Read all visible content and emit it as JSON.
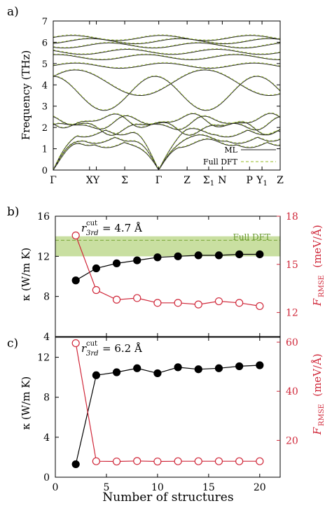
{
  "chart_data": [
    {
      "panel_label": "a)",
      "type": "line",
      "title": "",
      "xlabel": "",
      "ylabel": "Frequency (THz)",
      "ylim": [
        0,
        7
      ],
      "yticks": [
        0,
        1,
        2,
        3,
        4,
        5,
        6,
        7
      ],
      "x_path_labels": [
        "Γ",
        "X",
        "Y",
        "Σ",
        "Γ",
        "Z",
        "Σ1",
        "N",
        "P",
        "Y1",
        "Z"
      ],
      "x_path_positions": [
        0,
        0.16,
        0.19,
        0.315,
        0.465,
        0.59,
        0.685,
        0.745,
        0.865,
        0.92,
        1.0
      ],
      "legend": {
        "placement": "bottom-right",
        "entries": [
          "ML",
          "Full DFT"
        ]
      },
      "series": [
        {
          "name": "ML",
          "style": "solid",
          "color": "#222222"
        },
        {
          "name": "Full DFT",
          "style": "dashed",
          "color": "#a8c84a"
        }
      ],
      "bands_thz": {
        "flat_optical": [
          4.9,
          5.3,
          5.55,
          5.85,
          6.05,
          6.2
        ],
        "mid_optical": [
          2.0,
          2.2,
          2.3
        ],
        "acoustic_max": [
          1.3,
          1.5,
          1.8
        ]
      }
    },
    {
      "panel_label": "b)",
      "type": "line",
      "xlabel": "",
      "ylabel_left": "κ (W/m K)",
      "ylabel_right": "F_RMSE (meV/Å)",
      "annotation": "r^cut_3rd = 4.7 Å",
      "reference_label": "Full DFT",
      "reference_band": [
        12.0,
        14.0
      ],
      "reference_value": 13.6,
      "ylim_left": [
        4,
        16
      ],
      "ylim_right": [
        10.5,
        18
      ],
      "x": [
        2,
        4,
        6,
        8,
        10,
        12,
        14,
        16,
        18,
        20
      ],
      "series": [
        {
          "name": "κ",
          "axis": "left",
          "color": "#000000",
          "marker": "filled-circle",
          "values": [
            9.6,
            10.8,
            11.3,
            11.6,
            11.9,
            12.0,
            12.1,
            12.1,
            12.2,
            12.2
          ]
        },
        {
          "name": "F_RMSE",
          "axis": "right",
          "color": "#d0283a",
          "marker": "open-circle",
          "values": [
            16.8,
            13.4,
            12.8,
            12.9,
            12.6,
            12.6,
            12.5,
            12.7,
            12.6,
            12.4
          ]
        }
      ],
      "yticks_left": [
        4,
        8,
        12,
        16
      ],
      "yticks_right": [
        12,
        15,
        18
      ]
    },
    {
      "panel_label": "c)",
      "type": "line",
      "xlabel": "Number of structures",
      "ylabel_left": "κ (W/m K)",
      "ylabel_right": "F_RMSE (meV/Å)",
      "annotation": "r^cut_3rd = 6.2 Å",
      "ylim_left": [
        0,
        14
      ],
      "ylim_right": [
        5,
        62
      ],
      "xlim": [
        0,
        22
      ],
      "xticks": [
        0,
        5,
        10,
        15,
        20
      ],
      "x": [
        2,
        4,
        6,
        8,
        10,
        12,
        14,
        16,
        18,
        20
      ],
      "series": [
        {
          "name": "κ",
          "axis": "left",
          "color": "#000000",
          "marker": "filled-circle",
          "values": [
            1.3,
            10.2,
            10.5,
            10.9,
            10.4,
            11.0,
            10.8,
            10.9,
            11.1,
            11.2
          ]
        },
        {
          "name": "F_RMSE",
          "axis": "right",
          "color": "#d0283a",
          "marker": "open-circle",
          "values": [
            59.6,
            11.5,
            11.4,
            11.6,
            11.4,
            11.5,
            11.5,
            11.5,
            11.5,
            11.5
          ]
        }
      ],
      "yticks_left": [
        0,
        4,
        8,
        12
      ],
      "yticks_right": [
        20,
        40,
        60
      ]
    }
  ],
  "colors": {
    "kappa": "#000000",
    "frmse": "#d0283a",
    "dft_band": "#c9dfa1",
    "dft_line": "#7aa83a",
    "dft_dash": "#a8c84a"
  }
}
